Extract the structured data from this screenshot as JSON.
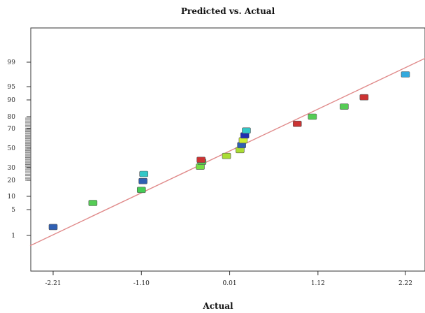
{
  "chart_data": {
    "type": "scatter",
    "title": "Predicted vs. Actual",
    "xlabel": "Actual",
    "ylabel": "",
    "x_ticks": [
      "-2.21",
      "-1.10",
      "0.01",
      "1.12",
      "2.22"
    ],
    "x_tick_values": [
      -2.21,
      -1.1,
      0.01,
      1.12,
      2.22
    ],
    "y_ticks": [
      "1",
      "5",
      "10",
      "20",
      "30",
      "50",
      "70",
      "80",
      "90",
      "95",
      "99"
    ],
    "y_tick_values": [
      1,
      5,
      10,
      20,
      30,
      50,
      70,
      80,
      90,
      95,
      99
    ],
    "xlim": [
      -2.5,
      2.5
    ],
    "y_scale": "normal-probability",
    "grid": false,
    "fit_line": {
      "points": [
        [
          -2.5,
          0.65
        ],
        [
          2.5,
          99.4
        ]
      ],
      "color": "#e08a8a"
    },
    "points": [
      {
        "x": -2.21,
        "y": 2.3,
        "color": "#2f5fb3"
      },
      {
        "x": -1.71,
        "y": 7.5,
        "color": "#55cc55"
      },
      {
        "x": -1.1,
        "y": 14,
        "color": "#44cc55"
      },
      {
        "x": -1.08,
        "y": 19.5,
        "color": "#2f5fb3"
      },
      {
        "x": -1.07,
        "y": 25,
        "color": "#33c7c7"
      },
      {
        "x": -0.36,
        "y": 31,
        "color": "#77dd44"
      },
      {
        "x": -0.34,
        "y": 36,
        "color": "#55cc55"
      },
      {
        "x": -0.35,
        "y": 38,
        "color": "#cc3333"
      },
      {
        "x": -0.03,
        "y": 42,
        "color": "#aadd33"
      },
      {
        "x": 0.14,
        "y": 48,
        "color": "#aadd33"
      },
      {
        "x": 0.16,
        "y": 53,
        "color": "#2f5fb3"
      },
      {
        "x": 0.18,
        "y": 58,
        "color": "#ccee33"
      },
      {
        "x": 0.2,
        "y": 63,
        "color": "#1f2fb0"
      },
      {
        "x": 0.22,
        "y": 68,
        "color": "#33c7c7"
      },
      {
        "x": 0.86,
        "y": 74,
        "color": "#cc3333"
      },
      {
        "x": 1.05,
        "y": 80,
        "color": "#55cc55"
      },
      {
        "x": 1.45,
        "y": 86,
        "color": "#55cc55"
      },
      {
        "x": 1.7,
        "y": 91,
        "color": "#cc3333"
      },
      {
        "x": 2.22,
        "y": 97,
        "color": "#33a9dd"
      }
    ]
  }
}
